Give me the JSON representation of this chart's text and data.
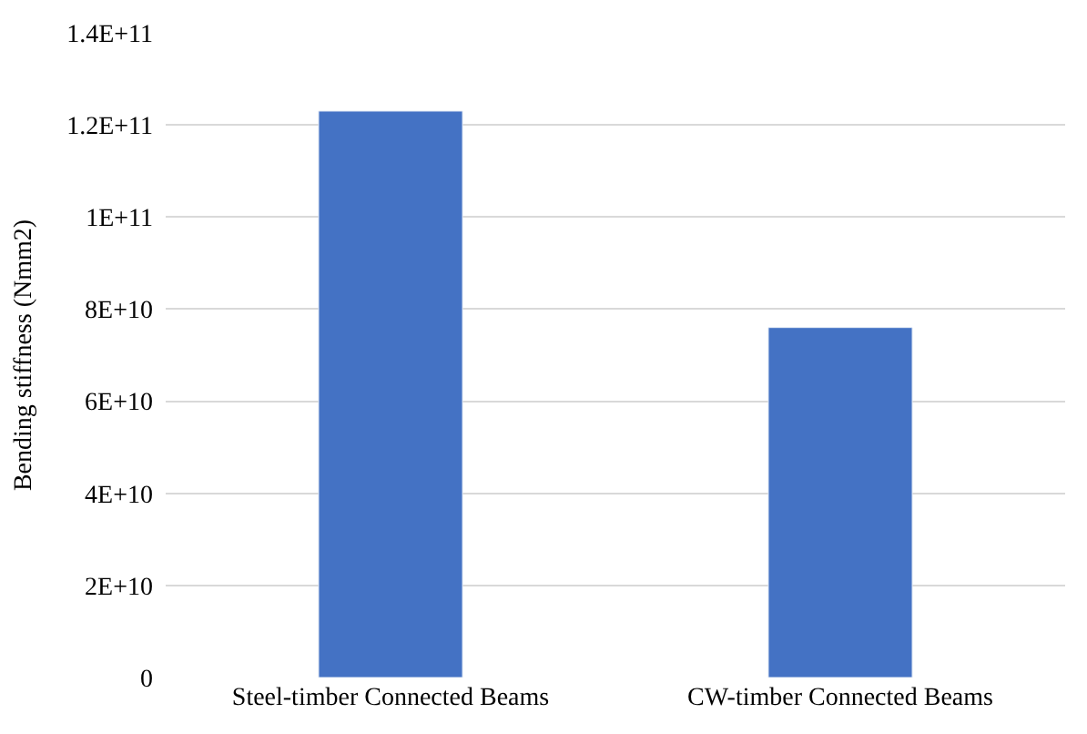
{
  "chart_data": {
    "type": "bar",
    "ylabel": "Bending stiffness (Nmm2)",
    "categories": [
      "Steel-timber Connected Beams",
      "CW-timber Connected Beams"
    ],
    "values": [
      123000000000.0,
      76000000000.0
    ],
    "color": "#4472c4",
    "ylim": [
      0,
      140000000000.0
    ],
    "yticks": [
      0,
      {
        "value": 20000000000.0,
        "label": "2E+10"
      },
      {
        "value": 40000000000.0,
        "label": "4E+10"
      },
      {
        "value": 60000000000.0,
        "label": "6E+10"
      },
      {
        "value": 80000000000.0,
        "label": "8E+10"
      },
      {
        "value": 100000000000.0,
        "label": "1E+11"
      },
      {
        "value": 120000000000.0,
        "label": "1.2E+11"
      },
      {
        "value": 140000000000.0,
        "label": "1.4E+11"
      }
    ],
    "grid": "y"
  }
}
